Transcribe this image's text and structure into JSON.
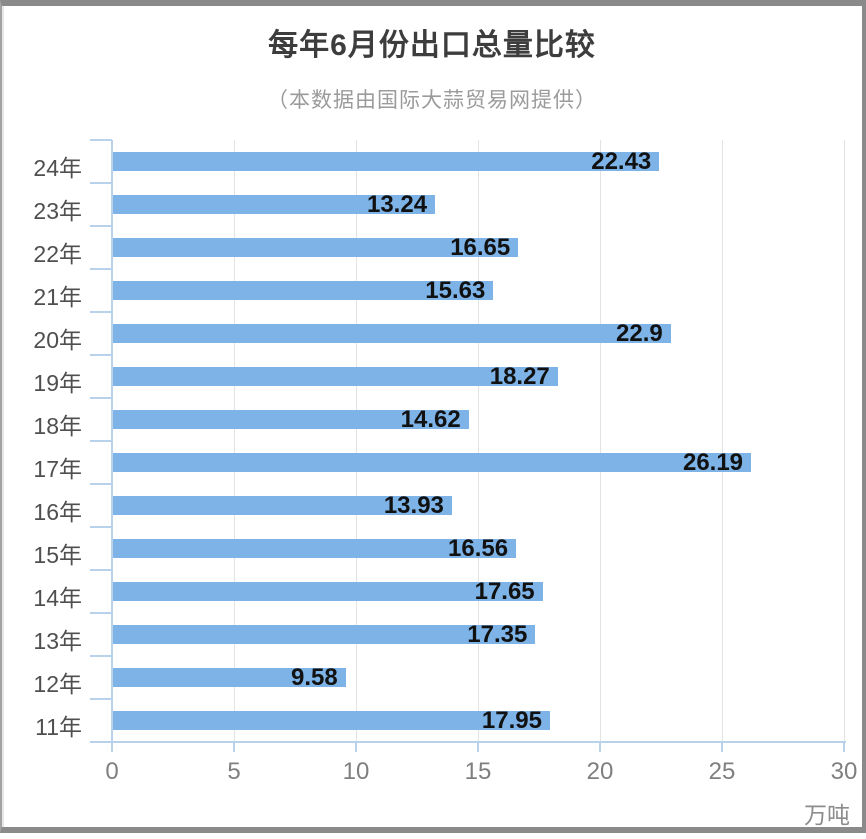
{
  "page": {
    "title": "每年6月份出口总量比较",
    "subtitle": "（本数据由国际大蒜贸易网提供）"
  },
  "chart_data": {
    "type": "bar",
    "orientation": "horizontal",
    "title": "每年6月份出口总量比较",
    "subtitle": "（本数据由国际大蒜贸易网提供）",
    "categories": [
      "24年",
      "23年",
      "22年",
      "21年",
      "20年",
      "19年",
      "18年",
      "17年",
      "16年",
      "15年",
      "14年",
      "13年",
      "12年",
      "11年"
    ],
    "values": [
      22.43,
      13.24,
      16.65,
      15.63,
      22.9,
      18.27,
      14.62,
      26.19,
      13.93,
      16.56,
      17.65,
      17.35,
      9.58,
      17.95
    ],
    "value_labels": [
      "22.43",
      "13.24",
      "16.65",
      "15.63",
      "22.9",
      "18.27",
      "14.62",
      "26.19",
      "13.93",
      "16.56",
      "17.65",
      "17.35",
      "9.58",
      "17.95"
    ],
    "xlabel": "万吨",
    "xlim": [
      0,
      30
    ],
    "xticks": [
      0,
      5,
      10,
      15,
      20,
      25,
      30
    ],
    "grid": "vertical-gridlines-at-xticks",
    "value_label_position": "inside-bar-right",
    "colors": {
      "bar": "#7db3e7",
      "axis": "#b9d2ec",
      "gridline": "#e3e3e3",
      "value_label": "#111111",
      "category_label": "#4f4f4f",
      "tick_label": "#7f7f7f",
      "title": "#3d3d3d",
      "subtitle": "#9b9b9b",
      "frame": "#8a8a8a"
    }
  }
}
